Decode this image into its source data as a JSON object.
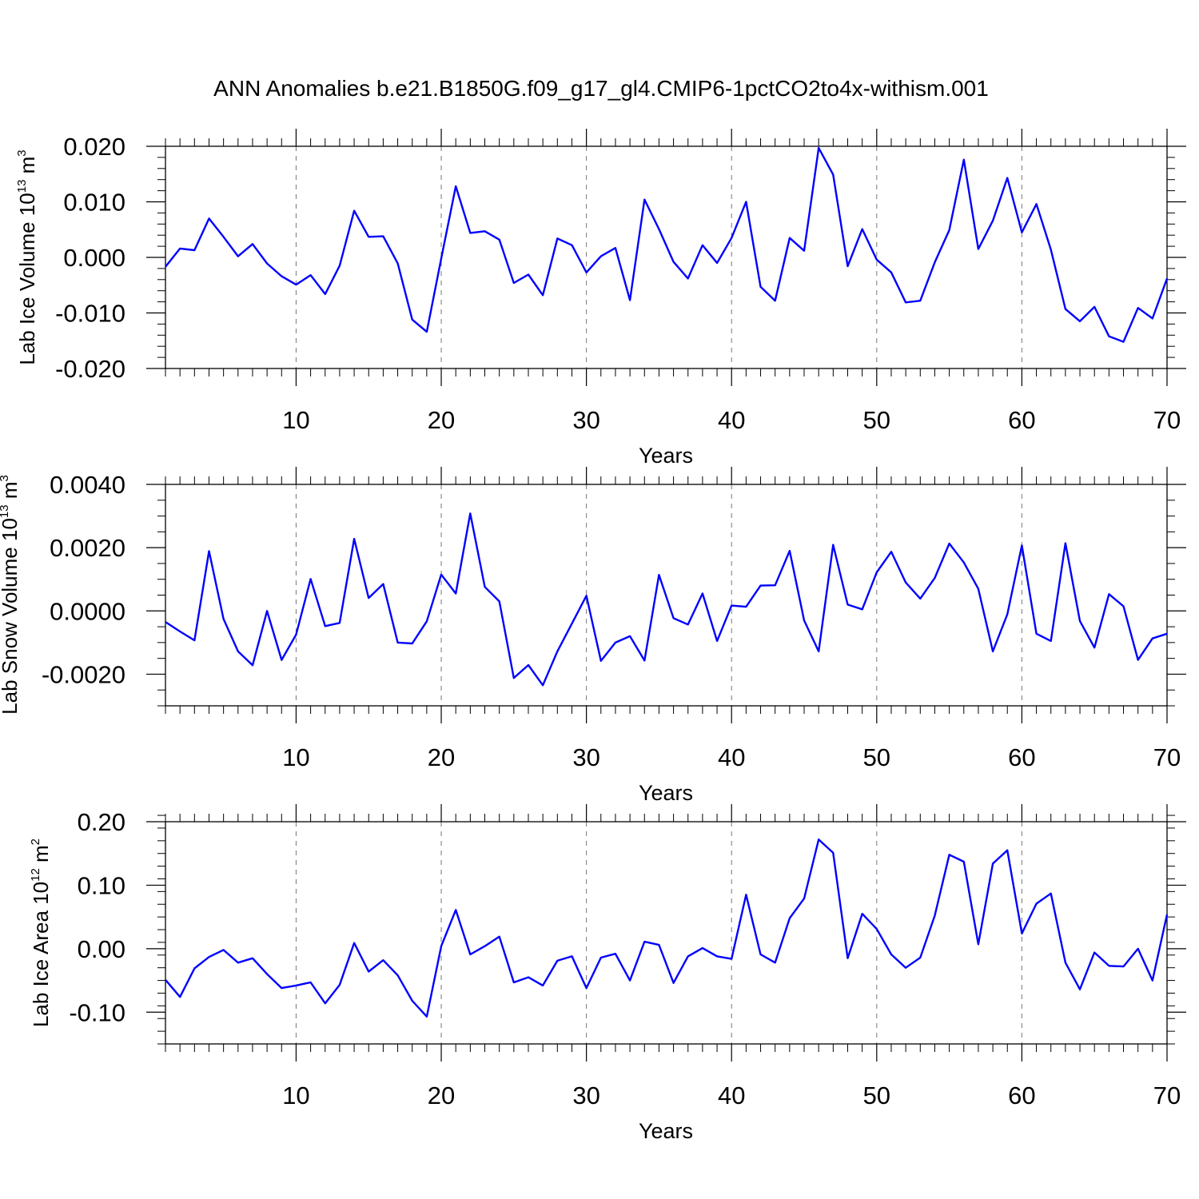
{
  "title": "ANN Anomalies b.e21.B1850G.f09_g17_gl4.CMIP6-1pctCO2to4x-withism.001",
  "chart_data": [
    {
      "type": "line",
      "ylabel": {
        "prefix": "Lab Ice Volume 10",
        "exp": "13",
        "unit": " m",
        "unit_exp": "3"
      },
      "xlabel": "Years",
      "xlim": [
        1,
        70
      ],
      "ylim": [
        -0.02,
        0.02
      ],
      "xticks": [
        "10",
        "20",
        "30",
        "40",
        "50",
        "60",
        "70"
      ],
      "yticks": [
        {
          "v": 0.02,
          "label": "0.020"
        },
        {
          "v": 0.01,
          "label": "0.010"
        },
        {
          "v": 0.0,
          "label": "0.000"
        },
        {
          "v": -0.01,
          "label": "-0.010"
        },
        {
          "v": -0.02,
          "label": "-0.020"
        }
      ],
      "yminor": 0.002,
      "grid": true,
      "series": [
        {
          "name": "Lab Ice Volume",
          "color": "#0000ff",
          "values": [
            -0.0017,
            0.0016,
            0.0013,
            0.007,
            0.0037,
            0.0002,
            0.0024,
            -0.0011,
            -0.0034,
            -0.0049,
            -0.0032,
            -0.0066,
            -0.0015,
            0.0084,
            0.0037,
            0.0038,
            -0.0011,
            -0.0112,
            -0.0134,
            -0.0002,
            0.0128,
            0.0044,
            0.0047,
            0.0032,
            -0.0046,
            -0.0031,
            -0.0068,
            0.0034,
            0.0022,
            -0.0027,
            0.0002,
            0.0017,
            -0.0077,
            0.0104,
            0.0051,
            -0.0008,
            -0.0038,
            0.0022,
            -0.001,
            0.0035,
            0.01,
            -0.0053,
            -0.0078,
            0.0035,
            0.0012,
            0.0197,
            0.0149,
            -0.0016,
            0.0051,
            -0.0004,
            -0.0027,
            -0.0081,
            -0.0078,
            -0.0009,
            0.0049,
            0.0176,
            0.0015,
            0.0066,
            0.0143,
            0.0045,
            0.0096,
            0.0014,
            -0.0093,
            -0.0115,
            -0.0089,
            -0.0142,
            -0.0152,
            -0.0091,
            -0.011,
            -0.0038
          ]
        }
      ]
    },
    {
      "type": "line",
      "ylabel": {
        "prefix": "Lab Snow Volume 10",
        "exp": "13",
        "unit": " m",
        "unit_exp": "3"
      },
      "xlabel": "Years",
      "xlim": [
        1,
        70
      ],
      "ylim": [
        -0.003,
        0.004
      ],
      "xticks": [
        "10",
        "20",
        "30",
        "40",
        "50",
        "60",
        "70"
      ],
      "yticks": [
        {
          "v": 0.004,
          "label": "0.0040"
        },
        {
          "v": 0.002,
          "label": "0.0020"
        },
        {
          "v": 0.0,
          "label": "0.0000"
        },
        {
          "v": -0.002,
          "label": "-0.0020"
        }
      ],
      "yminor": 0.0005,
      "grid": true,
      "series": [
        {
          "name": "Lab Snow Volume",
          "color": "#0000ff",
          "values": [
            -0.00035,
            -0.00065,
            -0.00093,
            0.00189,
            -0.00025,
            -0.00128,
            -0.00172,
            0.0,
            -0.00155,
            -0.00075,
            0.00101,
            -0.00048,
            -0.00038,
            0.00228,
            0.00041,
            0.00085,
            -0.001,
            -0.00103,
            -0.00033,
            0.00115,
            0.00055,
            0.00308,
            0.00076,
            0.0003,
            -0.00212,
            -0.00171,
            -0.00235,
            -0.00128,
            -0.0004,
            0.00048,
            -0.00158,
            -0.001,
            -0.0008,
            -0.00157,
            0.00114,
            -0.00023,
            -0.00043,
            0.00055,
            -0.00095,
            0.00017,
            0.00013,
            0.0008,
            0.00081,
            0.0019,
            -0.0003,
            -0.00128,
            0.00209,
            0.0002,
            5e-05,
            0.00122,
            0.00187,
            0.0009,
            0.00039,
            0.00104,
            0.00213,
            0.00153,
            0.0007,
            -0.00128,
            -0.00011,
            0.00207,
            -0.00072,
            -0.00095,
            0.00214,
            -0.00032,
            -0.00116,
            0.00053,
            0.00015,
            -0.00155,
            -0.00087,
            -0.00072
          ]
        }
      ]
    },
    {
      "type": "line",
      "ylabel": {
        "prefix": "Lab Ice Area 10",
        "exp": "12",
        "unit": " m",
        "unit_exp": "2"
      },
      "xlabel": "Years",
      "xlim": [
        1,
        70
      ],
      "ylim": [
        -0.15,
        0.2
      ],
      "xticks": [
        "10",
        "20",
        "30",
        "40",
        "50",
        "60",
        "70"
      ],
      "yticks": [
        {
          "v": 0.2,
          "label": "0.20"
        },
        {
          "v": 0.1,
          "label": "0.10"
        },
        {
          "v": 0.0,
          "label": "0.00"
        },
        {
          "v": -0.1,
          "label": "-0.10"
        }
      ],
      "yminor": 0.02,
      "grid": true,
      "series": [
        {
          "name": "Lab Ice Area",
          "color": "#0000ff",
          "values": [
            -0.049,
            -0.076,
            -0.031,
            -0.013,
            -0.002,
            -0.022,
            -0.015,
            -0.04,
            -0.062,
            -0.058,
            -0.053,
            -0.086,
            -0.057,
            0.009,
            -0.036,
            -0.018,
            -0.042,
            -0.082,
            -0.107,
            0.004,
            0.061,
            -0.009,
            0.004,
            0.019,
            -0.053,
            -0.045,
            -0.058,
            -0.019,
            -0.012,
            -0.062,
            -0.014,
            -0.008,
            -0.05,
            0.011,
            0.006,
            -0.054,
            -0.012,
            0.001,
            -0.012,
            -0.016,
            0.085,
            -0.009,
            -0.022,
            0.048,
            0.079,
            0.172,
            0.151,
            -0.015,
            0.055,
            0.031,
            -0.009,
            -0.03,
            -0.014,
            0.052,
            0.148,
            0.137,
            0.007,
            0.134,
            0.155,
            0.024,
            0.071,
            0.087,
            -0.022,
            -0.064,
            -0.006,
            -0.027,
            -0.028,
            0.0,
            -0.05,
            0.054
          ]
        }
      ]
    }
  ]
}
